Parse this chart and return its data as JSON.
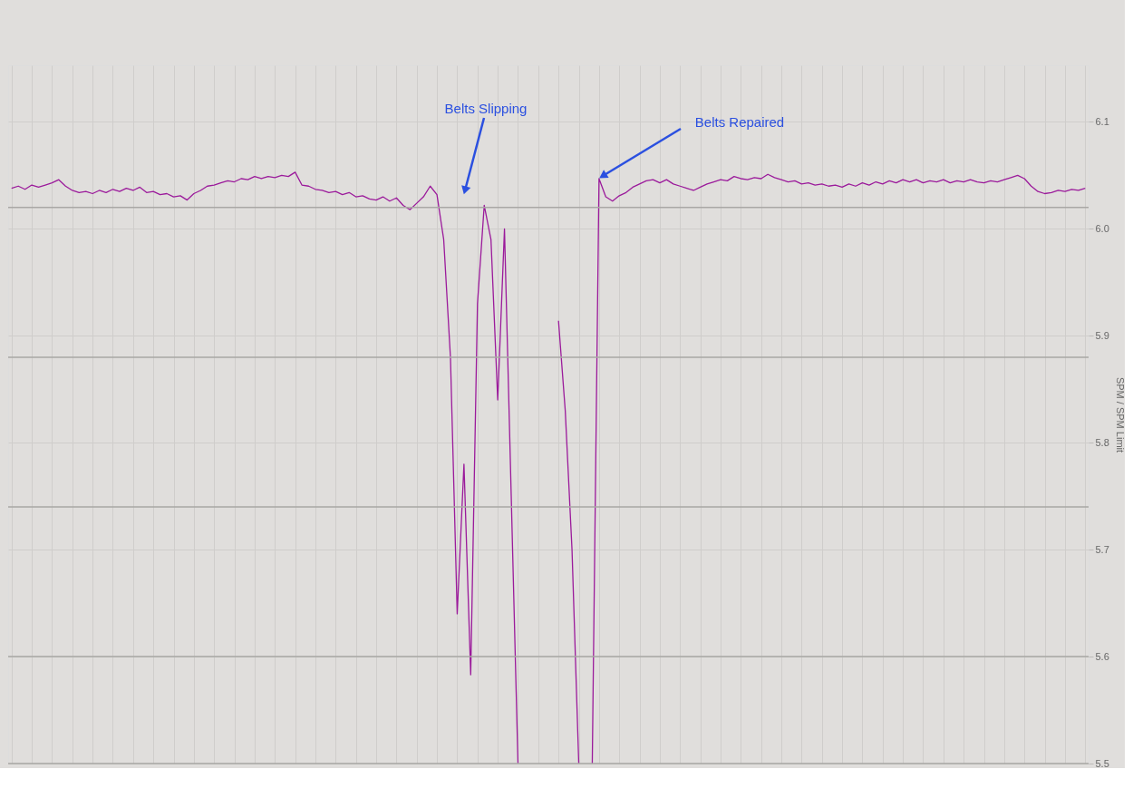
{
  "chart_data": {
    "type": "line",
    "categories": [
      null,
      null,
      null,
      null,
      null,
      null,
      null,
      null,
      null,
      null,
      null,
      null,
      null,
      null,
      null,
      null,
      null,
      null,
      null,
      null,
      null,
      null,
      null,
      null,
      null,
      null,
      null,
      null,
      null,
      null,
      null,
      null,
      null,
      null,
      null,
      null,
      null,
      null,
      null,
      null,
      null,
      null,
      null,
      null,
      null,
      null,
      null,
      null,
      null,
      null,
      null,
      null,
      null,
      null,
      null,
      null,
      null,
      null,
      null,
      null,
      null,
      null,
      null,
      null,
      null,
      null,
      null,
      null,
      null,
      null,
      null,
      null,
      null,
      null,
      null,
      null,
      null,
      null,
      null,
      null,
      null,
      null,
      null,
      null,
      null,
      null,
      null,
      null,
      null,
      null,
      null,
      null,
      null,
      null,
      null,
      null,
      null,
      null,
      null,
      null,
      null,
      null,
      null,
      null,
      null,
      null,
      null,
      null,
      null,
      null,
      null,
      null,
      null,
      null,
      null,
      null,
      null,
      null,
      null,
      null,
      null,
      null,
      null,
      null,
      null,
      null,
      null,
      null,
      null,
      null,
      null,
      null,
      null,
      null,
      null,
      null,
      null,
      null,
      null,
      null,
      null,
      null,
      null,
      null,
      null,
      null,
      null,
      null,
      null,
      null,
      null,
      null,
      null,
      null,
      null,
      null,
      null,
      null,
      null,
      null
    ],
    "series": [
      {
        "color": "#9b1a9b",
        "values": [
          6.038,
          6.04,
          6.037,
          6.041,
          6.039,
          6.041,
          6.043,
          6.046,
          6.04,
          6.036,
          6.034,
          6.035,
          6.033,
          6.036,
          6.034,
          6.037,
          6.035,
          6.038,
          6.036,
          6.039,
          6.034,
          6.035,
          6.032,
          6.033,
          6.03,
          6.031,
          6.027,
          6.033,
          6.036,
          6.04,
          6.041,
          6.043,
          6.045,
          6.044,
          6.047,
          6.046,
          6.049,
          6.047,
          6.049,
          6.048,
          6.05,
          6.049,
          6.053,
          6.041,
          6.04,
          6.037,
          6.036,
          6.034,
          6.035,
          6.032,
          6.034,
          6.03,
          6.031,
          6.028,
          6.027,
          6.03,
          6.026,
          6.029,
          6.022,
          6.018,
          6.024,
          6.03,
          6.04,
          6.032,
          5.99,
          5.88,
          5.64,
          5.78,
          5.583,
          5.93,
          6.022,
          5.99,
          5.84,
          6.0,
          5.75,
          5.5,
          null,
          null,
          null,
          null,
          null,
          5.914,
          5.83,
          5.7,
          5.5,
          null,
          5.5,
          6.047,
          6.03,
          6.026,
          6.031,
          6.034,
          6.039,
          6.042,
          6.045,
          6.046,
          6.043,
          6.046,
          6.042,
          6.04,
          6.038,
          6.036,
          6.039,
          6.042,
          6.044,
          6.046,
          6.045,
          6.049,
          6.047,
          6.046,
          6.048,
          6.047,
          6.051,
          6.048,
          6.046,
          6.044,
          6.045,
          6.042,
          6.043,
          6.041,
          6.042,
          6.04,
          6.041,
          6.039,
          6.042,
          6.04,
          6.043,
          6.041,
          6.044,
          6.042,
          6.045,
          6.043,
          6.046,
          6.044,
          6.046,
          6.043,
          6.045,
          6.044,
          6.046,
          6.043,
          6.045,
          6.044,
          6.046,
          6.044,
          6.043,
          6.045,
          6.044,
          6.046,
          6.048,
          6.05,
          6.047,
          6.04,
          6.035,
          6.033,
          6.034,
          6.036,
          6.035,
          6.037,
          6.036,
          6.038
        ]
      }
    ],
    "ylabel": "SPM / SPM Limit",
    "ylim": [
      5.5,
      6.153
    ],
    "yticks": [
      5.5,
      5.6,
      5.7,
      5.8,
      5.9,
      {
        "value": 6.0,
        "label": "6.0"
      },
      6.1
    ],
    "ref_lines": [
      {
        "axis": "y",
        "value": 6.02,
        "color": "#a9a7a5"
      },
      {
        "axis": "y",
        "value": 5.88,
        "color": "#a9a7a5"
      },
      {
        "axis": "y",
        "value": 5.74,
        "color": "#a9a7a5"
      },
      {
        "axis": "y",
        "value": 5.6,
        "color": "#a9a7a5"
      }
    ],
    "annotations": [
      "Belts Slipping",
      "Belts Repaired"
    ],
    "grid": true,
    "tick_labels": "y",
    "line_style": "solid",
    "marker": "none"
  }
}
